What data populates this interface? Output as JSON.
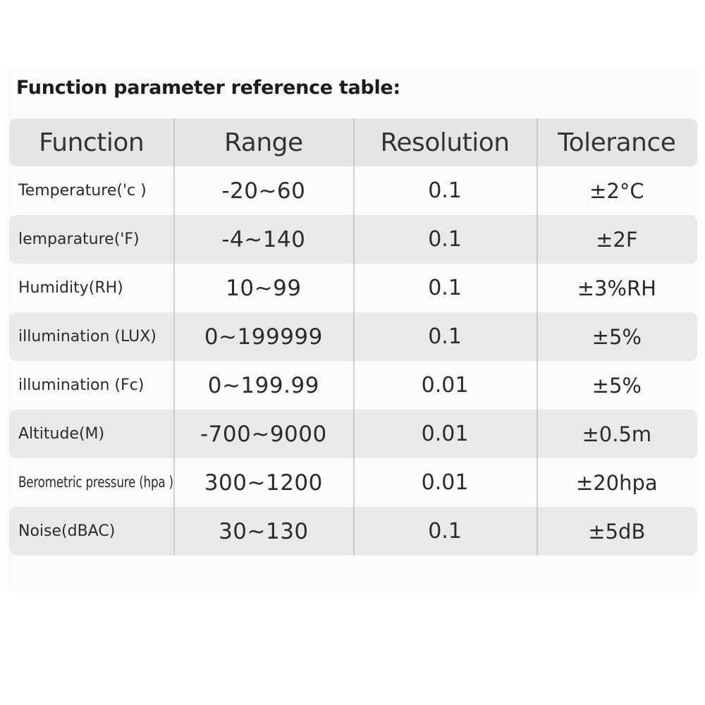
{
  "page": {
    "title": "Function parameter reference table:"
  },
  "table": {
    "columns": [
      "Function",
      "Range",
      "Resolution",
      "Tolerance"
    ],
    "rows": [
      {
        "function": "Temperature('c )",
        "range": "-20~60",
        "resolution": "0.1",
        "tolerance": "±2°C"
      },
      {
        "function": "lemparature('F)",
        "range": "-4~140",
        "resolution": "0.1",
        "tolerance": "±2F"
      },
      {
        "function": "Humidity(RH)",
        "range": "10~99",
        "resolution": "0.1",
        "tolerance": "±3%RH"
      },
      {
        "function": "illumination (LUX)",
        "range": "0~199999",
        "resolution": "0.1",
        "tolerance": "±5%"
      },
      {
        "function": "illumination (Fc)",
        "range": "0~199.99",
        "resolution": "0.01",
        "tolerance": "±5%"
      },
      {
        "function": "Altitude(M)",
        "range": "-700~9000",
        "resolution": "0.01",
        "tolerance": "±0.5m"
      },
      {
        "function": "Berometric pressure (hpa )",
        "range": "300~1200",
        "resolution": "0.01",
        "tolerance": "±20hpa"
      },
      {
        "function": "Noise(dBAC)",
        "range": "30~130",
        "resolution": "0.1",
        "tolerance": "±5dB"
      }
    ]
  },
  "colors": {
    "panel-bg": "#fbfbfb",
    "header-bg": "#e5e5e5",
    "row-alt-bg": "#e9e9e9",
    "divider": "#c6c6c6",
    "title-text": "#1c1c1c"
  }
}
